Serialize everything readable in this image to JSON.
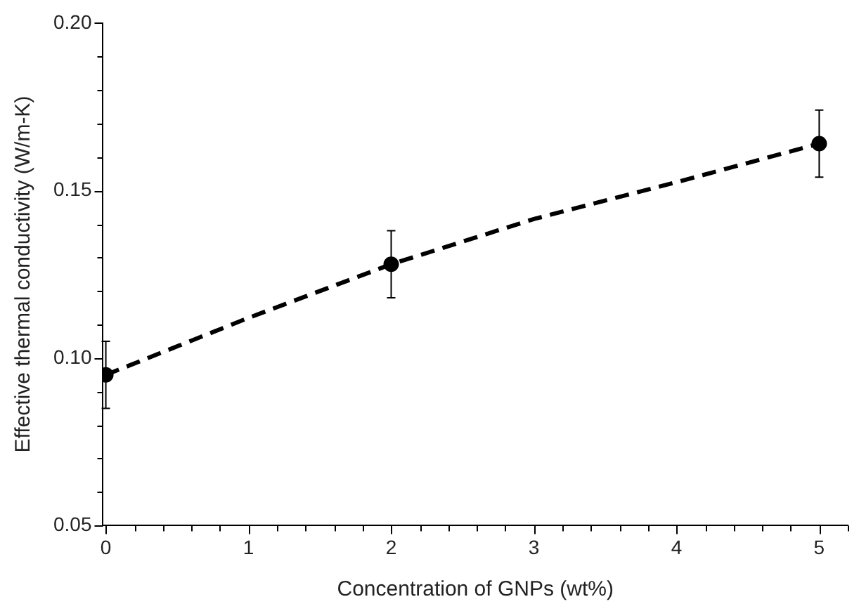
{
  "chart_data": {
    "type": "scatter",
    "xlabel": "Concentration of GNPs (wt%)",
    "ylabel": "Effective thermal conductivity (W/m-K)",
    "xlim": [
      -0.02,
      5.2
    ],
    "ylim": [
      0.05,
      0.2
    ],
    "xticks": [
      0,
      {
        "value": 0.2,
        "label": null
      },
      {
        "value": 0.4,
        "label": null
      },
      {
        "value": 0.6,
        "label": null
      },
      {
        "value": 0.8,
        "label": null
      },
      1,
      {
        "value": 1.2,
        "label": null
      },
      {
        "value": 1.4,
        "label": null
      },
      {
        "value": 1.6,
        "label": null
      },
      {
        "value": 1.8,
        "label": null
      },
      2,
      {
        "value": 2.2,
        "label": null
      },
      {
        "value": 2.4,
        "label": null
      },
      {
        "value": 2.6,
        "label": null
      },
      {
        "value": 2.8,
        "label": null
      },
      3,
      {
        "value": 3.2,
        "label": null
      },
      {
        "value": 3.4,
        "label": null
      },
      {
        "value": 3.6,
        "label": null
      },
      {
        "value": 3.8,
        "label": null
      },
      4,
      {
        "value": 4.2,
        "label": null
      },
      {
        "value": 4.4,
        "label": null
      },
      {
        "value": 4.6,
        "label": null
      },
      {
        "value": 4.8,
        "label": null
      },
      5,
      {
        "value": 5.2,
        "label": null
      }
    ],
    "yticks": [
      {
        "value": 0.05,
        "label": "0.05"
      },
      {
        "value": 0.06,
        "label": null
      },
      {
        "value": 0.07,
        "label": null
      },
      {
        "value": 0.08,
        "label": null
      },
      {
        "value": 0.09,
        "label": null
      },
      {
        "value": 0.1,
        "label": "0.10"
      },
      {
        "value": 0.11,
        "label": null
      },
      {
        "value": 0.12,
        "label": null
      },
      {
        "value": 0.13,
        "label": null
      },
      {
        "value": 0.14,
        "label": null
      },
      {
        "value": 0.15,
        "label": "0.15"
      },
      {
        "value": 0.16,
        "label": null
      },
      {
        "value": 0.17,
        "label": null
      },
      {
        "value": 0.18,
        "label": null
      },
      {
        "value": 0.19,
        "label": null
      },
      {
        "value": 0.2,
        "label": "0.20"
      }
    ],
    "grid": false,
    "legend": false,
    "series": [
      {
        "color": "#000000",
        "marker": "circle",
        "x": [
          0,
          2,
          5
        ],
        "values": [
          0.095,
          0.128,
          0.164
        ],
        "errors": [
          0.01,
          0.01,
          0.01
        ]
      },
      {
        "type": "line",
        "color": "#000000",
        "line_style": "dashed",
        "marker": "none",
        "x": [
          0,
          1,
          2,
          3,
          4,
          5
        ],
        "values": [
          0.095,
          0.112,
          0.128,
          0.1415,
          0.1525,
          0.164
        ]
      }
    ]
  }
}
